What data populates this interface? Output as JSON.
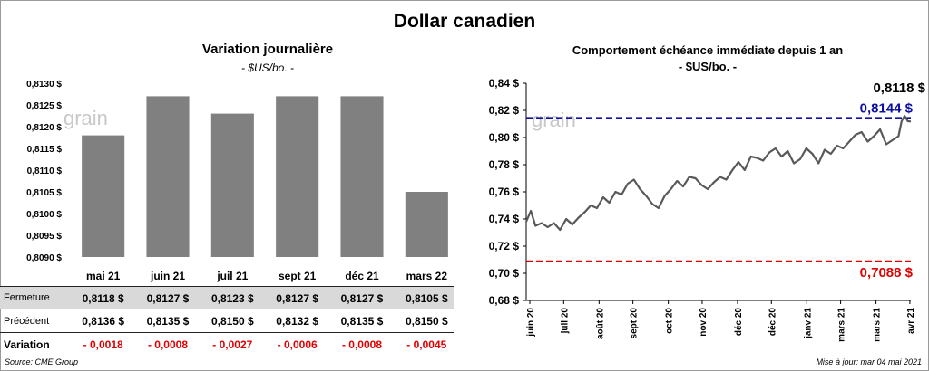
{
  "main_title": "Dollar canadien",
  "left": {
    "title": "Variation  journalière",
    "unit": "- $US/bo. -",
    "watermark": "grain",
    "table": {
      "rows": [
        {
          "label": "Fermeture",
          "values": [
            "0,8118  $",
            "0,8127  $",
            "0,8123  $",
            "0,8127  $",
            "0,8127  $",
            "0,8105  $"
          ]
        },
        {
          "label": "Précédent",
          "values": [
            "0,8136  $",
            "0,8135  $",
            "0,8150  $",
            "0,8132  $",
            "0,8135  $",
            "0,8150  $"
          ]
        },
        {
          "label": "Variation",
          "values": [
            "- 0,0018",
            "- 0,0008",
            "- 0,0027",
            "- 0,0006",
            "- 0,0008",
            "- 0,0045"
          ]
        }
      ]
    }
  },
  "right": {
    "title": "Comportement échéance immédiate depuis 1 an",
    "unit": "- $US/bo. -",
    "watermark": "grain"
  },
  "source": "Source: CME Group",
  "updated": "Mise à jour: mar 04 mai 2021",
  "colors": {
    "bar": "#808080",
    "line": "#595959",
    "blue_line": "#1010a0",
    "red_line": "#e00000",
    "neg": "#e00000"
  },
  "chart_data": [
    {
      "type": "bar",
      "title": "Variation  journalière",
      "ylabel": "- $US/bo. -",
      "categories": [
        "mai 21",
        "juin 21",
        "juil 21",
        "sept 21",
        "déc 21",
        "mars 22"
      ],
      "values": [
        0.8118,
        0.8127,
        0.8123,
        0.8127,
        0.8127,
        0.8105
      ],
      "ylim": [
        0.809,
        0.813
      ],
      "yticks": [
        0.809,
        0.8095,
        0.81,
        0.8105,
        0.811,
        0.8115,
        0.812,
        0.8125,
        0.813
      ],
      "ytick_labels": [
        "0,8090 $",
        "0,8095 $",
        "0,8100 $",
        "0,8105 $",
        "0,8110 $",
        "0,8115 $",
        "0,8120 $",
        "0,8125 $",
        "0,8130 $"
      ]
    },
    {
      "type": "line",
      "title": "Comportement échéance immédiate depuis 1 an",
      "ylabel": "- $US/bo. -",
      "ylim": [
        0.68,
        0.84
      ],
      "yticks": [
        0.68,
        0.7,
        0.72,
        0.74,
        0.76,
        0.78,
        0.8,
        0.82,
        0.84
      ],
      "ytick_labels": [
        "0,68 $",
        "0,70 $",
        "0,72 $",
        "0,74 $",
        "0,76 $",
        "0,78 $",
        "0,80 $",
        "0,82 $",
        "0,84 $"
      ],
      "xtick_labels": [
        "juin 20",
        "juil 20",
        "août 20",
        "sept 20",
        "oct 20",
        "nov 20",
        "déc 20",
        "déc 20",
        "janv 21",
        "mars 21",
        "mars 21",
        "avr 21"
      ],
      "x_range": [
        0,
        250
      ],
      "xtick_positions": [
        0,
        22,
        45,
        67,
        90,
        112,
        135,
        157,
        180,
        202,
        225,
        247
      ],
      "series": [
        {
          "name": "Échéance immédiate",
          "x": [
            0,
            3,
            6,
            10,
            14,
            18,
            22,
            26,
            30,
            34,
            38,
            42,
            46,
            50,
            54,
            58,
            62,
            66,
            70,
            74,
            78,
            82,
            86,
            90,
            94,
            98,
            102,
            106,
            110,
            114,
            118,
            122,
            126,
            130,
            134,
            138,
            142,
            146,
            150,
            154,
            158,
            162,
            166,
            170,
            174,
            178,
            182,
            186,
            190,
            194,
            198,
            202,
            206,
            210,
            214,
            218,
            222,
            226,
            230,
            234,
            238,
            242,
            244,
            246,
            248,
            250
          ],
          "values": [
            0.738,
            0.746,
            0.735,
            0.737,
            0.734,
            0.737,
            0.732,
            0.74,
            0.736,
            0.741,
            0.745,
            0.75,
            0.748,
            0.756,
            0.752,
            0.76,
            0.758,
            0.766,
            0.769,
            0.762,
            0.757,
            0.751,
            0.748,
            0.757,
            0.762,
            0.768,
            0.764,
            0.771,
            0.77,
            0.765,
            0.762,
            0.767,
            0.771,
            0.769,
            0.776,
            0.782,
            0.776,
            0.786,
            0.785,
            0.783,
            0.789,
            0.792,
            0.786,
            0.79,
            0.781,
            0.784,
            0.792,
            0.788,
            0.781,
            0.791,
            0.788,
            0.794,
            0.792,
            0.797,
            0.802,
            0.804,
            0.797,
            0.801,
            0.806,
            0.795,
            0.798,
            0.801,
            0.812,
            0.816,
            0.812,
            0.8118
          ]
        }
      ],
      "hlines": [
        {
          "value": 0.8144,
          "label": "0,8144 $",
          "color": "#1010a0"
        },
        {
          "value": 0.7088,
          "label": "0,7088 $",
          "color": "#e00000"
        }
      ],
      "last_label": "0,8118 $"
    }
  ]
}
